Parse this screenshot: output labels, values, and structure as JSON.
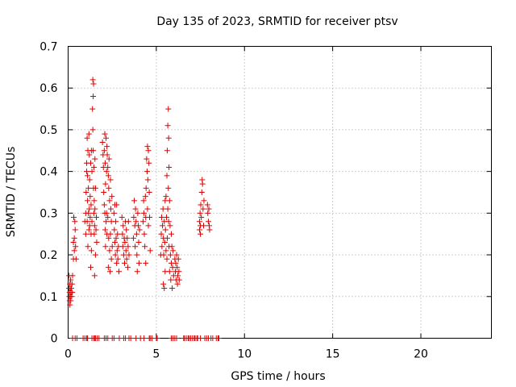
{
  "chart_data": {
    "type": "scatter",
    "title": "Day 135 of 2023, SRMTID for receiver ptsv",
    "xlabel": "GPS time / hours",
    "ylabel": "SRMTID / TECUs",
    "xlim": [
      0,
      24
    ],
    "ylim": [
      0,
      0.7
    ],
    "xticks": [
      0,
      5,
      10,
      15,
      20
    ],
    "xtick_labels": [
      "0",
      "5",
      "10",
      "15",
      "20"
    ],
    "yticks": [
      0,
      0.1,
      0.2,
      0.3,
      0.4,
      0.5,
      0.6,
      0.7
    ],
    "ytick_labels": [
      "0",
      "0.1",
      "0.2",
      "0.3",
      "0.4",
      "0.5",
      "0.6",
      "0.7"
    ],
    "grid": true,
    "marker": "+",
    "color": "#dd0000",
    "series": [
      {
        "name": "SRMTID",
        "points": [
          [
            0.05,
            0.15
          ],
          [
            0.05,
            0.12
          ],
          [
            0.06,
            0.1
          ],
          [
            0.08,
            0.11
          ],
          [
            0.08,
            0.09
          ],
          [
            0.1,
            0.13
          ],
          [
            0.1,
            0.08
          ],
          [
            0.12,
            0.12
          ],
          [
            0.12,
            0.1
          ],
          [
            0.14,
            0.14
          ],
          [
            0.15,
            0.09
          ],
          [
            0.16,
            0.11
          ],
          [
            0.18,
            0.12
          ],
          [
            0.2,
            0.1
          ],
          [
            0.22,
            0.13
          ],
          [
            0.24,
            0.11
          ],
          [
            0.25,
            0.15
          ],
          [
            0.3,
            0.19
          ],
          [
            0.3,
            0.23
          ],
          [
            0.32,
            0.29
          ],
          [
            0.35,
            0.24
          ],
          [
            0.35,
            0.21
          ],
          [
            0.38,
            0.28
          ],
          [
            0.4,
            0.26
          ],
          [
            0.42,
            0.22
          ],
          [
            0.45,
            0.19
          ],
          [
            0.95,
            0.28
          ],
          [
            1.0,
            0.25
          ],
          [
            1.0,
            0.3
          ],
          [
            1.02,
            0.35
          ],
          [
            1.05,
            0.42
          ],
          [
            1.05,
            0.4
          ],
          [
            1.08,
            0.48
          ],
          [
            1.08,
            0.28
          ],
          [
            1.1,
            0.39
          ],
          [
            1.1,
            0.33
          ],
          [
            1.12,
            0.45
          ],
          [
            1.12,
            0.22
          ],
          [
            1.15,
            0.3
          ],
          [
            1.15,
            0.36
          ],
          [
            1.18,
            0.49
          ],
          [
            1.18,
            0.26
          ],
          [
            1.2,
            0.44
          ],
          [
            1.2,
            0.31
          ],
          [
            1.22,
            0.38
          ],
          [
            1.22,
            0.27
          ],
          [
            1.25,
            0.34
          ],
          [
            1.25,
            0.29
          ],
          [
            1.28,
            0.42
          ],
          [
            1.28,
            0.17
          ],
          [
            1.3,
            0.25
          ],
          [
            1.3,
            0.32
          ],
          [
            1.32,
            0.45
          ],
          [
            1.32,
            0.21
          ],
          [
            1.35,
            0.4
          ],
          [
            1.35,
            0.28
          ],
          [
            1.38,
            0.55
          ],
          [
            1.4,
            0.62
          ],
          [
            1.4,
            0.5
          ],
          [
            1.42,
            0.58
          ],
          [
            1.42,
            0.45
          ],
          [
            1.44,
            0.61
          ],
          [
            1.44,
            0.36
          ],
          [
            1.46,
            0.41
          ],
          [
            1.46,
            0.3
          ],
          [
            1.48,
            0.33
          ],
          [
            1.48,
            0.25
          ],
          [
            1.5,
            0.27
          ],
          [
            1.5,
            0.15
          ],
          [
            1.52,
            0.31
          ],
          [
            1.52,
            0.43
          ],
          [
            1.55,
            0.36
          ],
          [
            1.55,
            0.2
          ],
          [
            1.58,
            0.26
          ],
          [
            1.6,
            0.29
          ],
          [
            1.62,
            0.23
          ],
          [
            1.95,
            0.47
          ],
          [
            1.98,
            0.44
          ],
          [
            2.0,
            0.41
          ],
          [
            2.02,
            0.35
          ],
          [
            2.05,
            0.45
          ],
          [
            2.05,
            0.32
          ],
          [
            2.08,
            0.49
          ],
          [
            2.08,
            0.3
          ],
          [
            2.1,
            0.42
          ],
          [
            2.1,
            0.26
          ],
          [
            2.12,
            0.37
          ],
          [
            2.12,
            0.22
          ],
          [
            2.15,
            0.48
          ],
          [
            2.15,
            0.28
          ],
          [
            2.18,
            0.4
          ],
          [
            2.18,
            0.3
          ],
          [
            2.2,
            0.46
          ],
          [
            2.2,
            0.25
          ],
          [
            2.22,
            0.44
          ],
          [
            2.25,
            0.41
          ],
          [
            2.25,
            0.29
          ],
          [
            2.28,
            0.39
          ],
          [
            2.28,
            0.17
          ],
          [
            2.3,
            0.36
          ],
          [
            2.3,
            0.24
          ],
          [
            2.32,
            0.43
          ],
          [
            2.35,
            0.33
          ],
          [
            2.35,
            0.21
          ],
          [
            2.38,
            0.16
          ],
          [
            2.4,
            0.38
          ],
          [
            2.4,
            0.25
          ],
          [
            2.42,
            0.31
          ],
          [
            2.45,
            0.28
          ],
          [
            2.45,
            0.19
          ],
          [
            2.48,
            0.34
          ],
          [
            2.5,
            0.22
          ],
          [
            2.6,
            0.3
          ],
          [
            2.62,
            0.26
          ],
          [
            2.65,
            0.32
          ],
          [
            2.65,
            0.23
          ],
          [
            2.68,
            0.2
          ],
          [
            2.7,
            0.28
          ],
          [
            2.72,
            0.24
          ],
          [
            2.75,
            0.32
          ],
          [
            2.75,
            0.18
          ],
          [
            2.78,
            0.21
          ],
          [
            2.8,
            0.25
          ],
          [
            2.82,
            0.19
          ],
          [
            2.85,
            0.22
          ],
          [
            2.88,
            0.16
          ],
          [
            3.05,
            0.29
          ],
          [
            3.08,
            0.25
          ],
          [
            3.1,
            0.22
          ],
          [
            3.12,
            0.27
          ],
          [
            3.15,
            0.2
          ],
          [
            3.18,
            0.24
          ],
          [
            3.2,
            0.18
          ],
          [
            3.22,
            0.23
          ],
          [
            3.25,
            0.28
          ],
          [
            3.28,
            0.21
          ],
          [
            3.3,
            0.26
          ],
          [
            3.32,
            0.19
          ],
          [
            3.35,
            0.24
          ],
          [
            3.38,
            0.17
          ],
          [
            3.4,
            0.22
          ],
          [
            3.42,
            0.28
          ],
          [
            3.45,
            0.2
          ],
          [
            3.7,
            0.24
          ],
          [
            3.72,
            0.29
          ],
          [
            3.75,
            0.33
          ],
          [
            3.78,
            0.27
          ],
          [
            3.8,
            0.22
          ],
          [
            3.82,
            0.31
          ],
          [
            3.85,
            0.28
          ],
          [
            3.88,
            0.25
          ],
          [
            3.9,
            0.2
          ],
          [
            3.92,
            0.16
          ],
          [
            3.95,
            0.3
          ],
          [
            3.98,
            0.27
          ],
          [
            4.0,
            0.23
          ],
          [
            4.02,
            0.18
          ],
          [
            4.05,
            0.26
          ],
          [
            4.25,
            0.28
          ],
          [
            4.28,
            0.33
          ],
          [
            4.3,
            0.3
          ],
          [
            4.32,
            0.25
          ],
          [
            4.35,
            0.22
          ],
          [
            4.38,
            0.34
          ],
          [
            4.4,
            0.29
          ],
          [
            4.4,
            0.18
          ],
          [
            4.42,
            0.36
          ],
          [
            4.45,
            0.43
          ],
          [
            4.48,
            0.4
          ],
          [
            4.5,
            0.46
          ],
          [
            4.5,
            0.31
          ],
          [
            4.52,
            0.38
          ],
          [
            4.55,
            0.45
          ],
          [
            4.55,
            0.27
          ],
          [
            4.58,
            0.42
          ],
          [
            4.6,
            0.35
          ],
          [
            4.62,
            0.29
          ],
          [
            4.65,
            0.21
          ],
          [
            5.25,
            0.2
          ],
          [
            5.28,
            0.25
          ],
          [
            5.3,
            0.29
          ],
          [
            5.32,
            0.22
          ],
          [
            5.35,
            0.27
          ],
          [
            5.38,
            0.31
          ],
          [
            5.4,
            0.24
          ],
          [
            5.4,
            0.13
          ],
          [
            5.42,
            0.2
          ],
          [
            5.45,
            0.28
          ],
          [
            5.45,
            0.12
          ],
          [
            5.48,
            0.23
          ],
          [
            5.5,
            0.33
          ],
          [
            5.5,
            0.16
          ],
          [
            5.52,
            0.26
          ],
          [
            5.55,
            0.21
          ],
          [
            5.55,
            0.34
          ],
          [
            5.58,
            0.29
          ],
          [
            5.6,
            0.19
          ],
          [
            5.6,
            0.39
          ],
          [
            5.62,
            0.45
          ],
          [
            5.62,
            0.24
          ],
          [
            5.65,
            0.51
          ],
          [
            5.65,
            0.31
          ],
          [
            5.68,
            0.55
          ],
          [
            5.68,
            0.36
          ],
          [
            5.7,
            0.48
          ],
          [
            5.7,
            0.28
          ],
          [
            5.72,
            0.41
          ],
          [
            5.72,
            0.22
          ],
          [
            5.75,
            0.33
          ],
          [
            5.75,
            0.16
          ],
          [
            5.78,
            0.27
          ],
          [
            5.8,
            0.2
          ],
          [
            5.82,
            0.14
          ],
          [
            5.85,
            0.25
          ],
          [
            5.85,
            0.18
          ],
          [
            5.88,
            0.22
          ],
          [
            5.9,
            0.12
          ],
          [
            5.92,
            0.17
          ],
          [
            5.95,
            0.21
          ],
          [
            5.98,
            0.15
          ],
          [
            6.05,
            0.19
          ],
          [
            6.08,
            0.16
          ],
          [
            6.1,
            0.18
          ],
          [
            6.12,
            0.14
          ],
          [
            6.15,
            0.2
          ],
          [
            6.18,
            0.17
          ],
          [
            6.2,
            0.13
          ],
          [
            6.22,
            0.15
          ],
          [
            6.25,
            0.19
          ],
          [
            6.28,
            0.16
          ],
          [
            6.3,
            0.14
          ],
          [
            7.45,
            0.28
          ],
          [
            7.45,
            0.26
          ],
          [
            7.48,
            0.3
          ],
          [
            7.5,
            0.27
          ],
          [
            7.5,
            0.25
          ],
          [
            7.52,
            0.32
          ],
          [
            7.55,
            0.29
          ],
          [
            7.58,
            0.35
          ],
          [
            7.6,
            0.38
          ],
          [
            7.62,
            0.37
          ],
          [
            7.65,
            0.31
          ],
          [
            7.68,
            0.27
          ],
          [
            7.7,
            0.33
          ],
          [
            7.9,
            0.32
          ],
          [
            7.92,
            0.3
          ],
          [
            7.95,
            0.28
          ],
          [
            7.98,
            0.31
          ],
          [
            8.0,
            0.27
          ],
          [
            8.02,
            0.26
          ],
          [
            0.25,
            0
          ],
          [
            0.4,
            0
          ],
          [
            0.5,
            0
          ],
          [
            0.85,
            0
          ],
          [
            0.95,
            0
          ],
          [
            1.05,
            0
          ],
          [
            1.1,
            0
          ],
          [
            1.35,
            0
          ],
          [
            1.45,
            0
          ],
          [
            1.5,
            0
          ],
          [
            1.55,
            0
          ],
          [
            1.65,
            0
          ],
          [
            1.75,
            0
          ],
          [
            2.05,
            0
          ],
          [
            2.15,
            0
          ],
          [
            2.25,
            0
          ],
          [
            2.5,
            0
          ],
          [
            2.6,
            0
          ],
          [
            2.9,
            0
          ],
          [
            3.15,
            0
          ],
          [
            3.25,
            0
          ],
          [
            3.45,
            0
          ],
          [
            3.55,
            0
          ],
          [
            3.85,
            0
          ],
          [
            4.1,
            0
          ],
          [
            4.3,
            0
          ],
          [
            4.6,
            0
          ],
          [
            4.65,
            0
          ],
          [
            4.75,
            0
          ],
          [
            5.0,
            0
          ],
          [
            5.05,
            0
          ],
          [
            5.85,
            0
          ],
          [
            5.95,
            0
          ],
          [
            6.05,
            0
          ],
          [
            6.15,
            0
          ],
          [
            6.55,
            0
          ],
          [
            6.6,
            0
          ],
          [
            6.7,
            0
          ],
          [
            6.8,
            0
          ],
          [
            6.85,
            0
          ],
          [
            6.95,
            0
          ],
          [
            7.05,
            0
          ],
          [
            7.15,
            0
          ],
          [
            7.2,
            0
          ],
          [
            7.3,
            0
          ],
          [
            7.35,
            0
          ],
          [
            7.5,
            0
          ],
          [
            7.75,
            0
          ],
          [
            7.85,
            0
          ],
          [
            7.95,
            0
          ],
          [
            8.1,
            0
          ],
          [
            8.2,
            0
          ],
          [
            8.4,
            0
          ],
          [
            8.5,
            0
          ],
          [
            8.55,
            0
          ]
        ]
      }
    ]
  }
}
